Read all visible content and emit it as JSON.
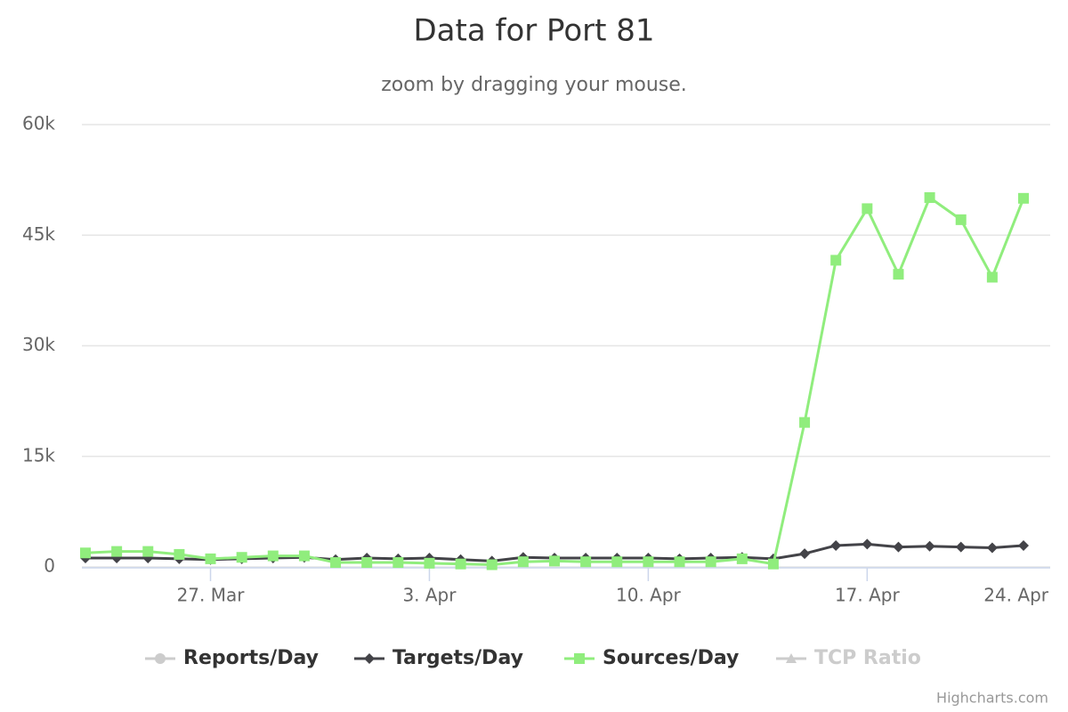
{
  "chart_data": {
    "type": "line",
    "title": "Data for Port 81",
    "subtitle": "zoom by dragging your mouse.",
    "credits": "Highcharts.com",
    "categories": [
      null,
      null,
      null,
      null,
      "27. Mar",
      null,
      null,
      null,
      null,
      null,
      null,
      "3. Apr",
      null,
      null,
      null,
      null,
      null,
      null,
      "10. Apr",
      null,
      null,
      null,
      null,
      null,
      null,
      "17. Apr",
      null,
      null,
      null,
      null,
      "24. Apr"
    ],
    "ylim": [
      0,
      60000
    ],
    "yticks": [
      {
        "value": 0,
        "label": "0"
      },
      {
        "value": 15000,
        "label": "15k"
      },
      {
        "value": 30000,
        "label": "30k"
      },
      {
        "value": 45000,
        "label": "45k"
      },
      {
        "value": 60000,
        "label": "60k"
      }
    ],
    "grid": true,
    "legend": "bottom",
    "series": [
      {
        "name": "Reports/Day",
        "color": "#c0c0c0",
        "marker": "circle",
        "visible": false
      },
      {
        "name": "Targets/Day",
        "color": "#434348",
        "marker": "diamond",
        "visible": true,
        "values": [
          1200,
          1200,
          1200,
          1100,
          1000,
          1100,
          1200,
          1300,
          1000,
          1200,
          1100,
          1200,
          1000,
          800,
          1300,
          1200,
          1200,
          1200,
          1200,
          1100,
          1200,
          1300,
          1100,
          1800,
          2900,
          3100,
          2700,
          2800,
          2700,
          2600,
          2900
        ]
      },
      {
        "name": "Sources/Day",
        "color": "#90ed7d",
        "marker": "square",
        "visible": true,
        "values": [
          1900,
          2100,
          2100,
          1700,
          1100,
          1300,
          1500,
          1500,
          600,
          600,
          600,
          500,
          400,
          300,
          700,
          800,
          700,
          700,
          700,
          700,
          700,
          1100,
          400,
          19600,
          41600,
          48600,
          39700,
          50100,
          47100,
          39300,
          50000
        ]
      },
      {
        "name": "TCP Ratio",
        "color": "#cccccc",
        "marker": "triangle",
        "visible": false
      }
    ]
  }
}
